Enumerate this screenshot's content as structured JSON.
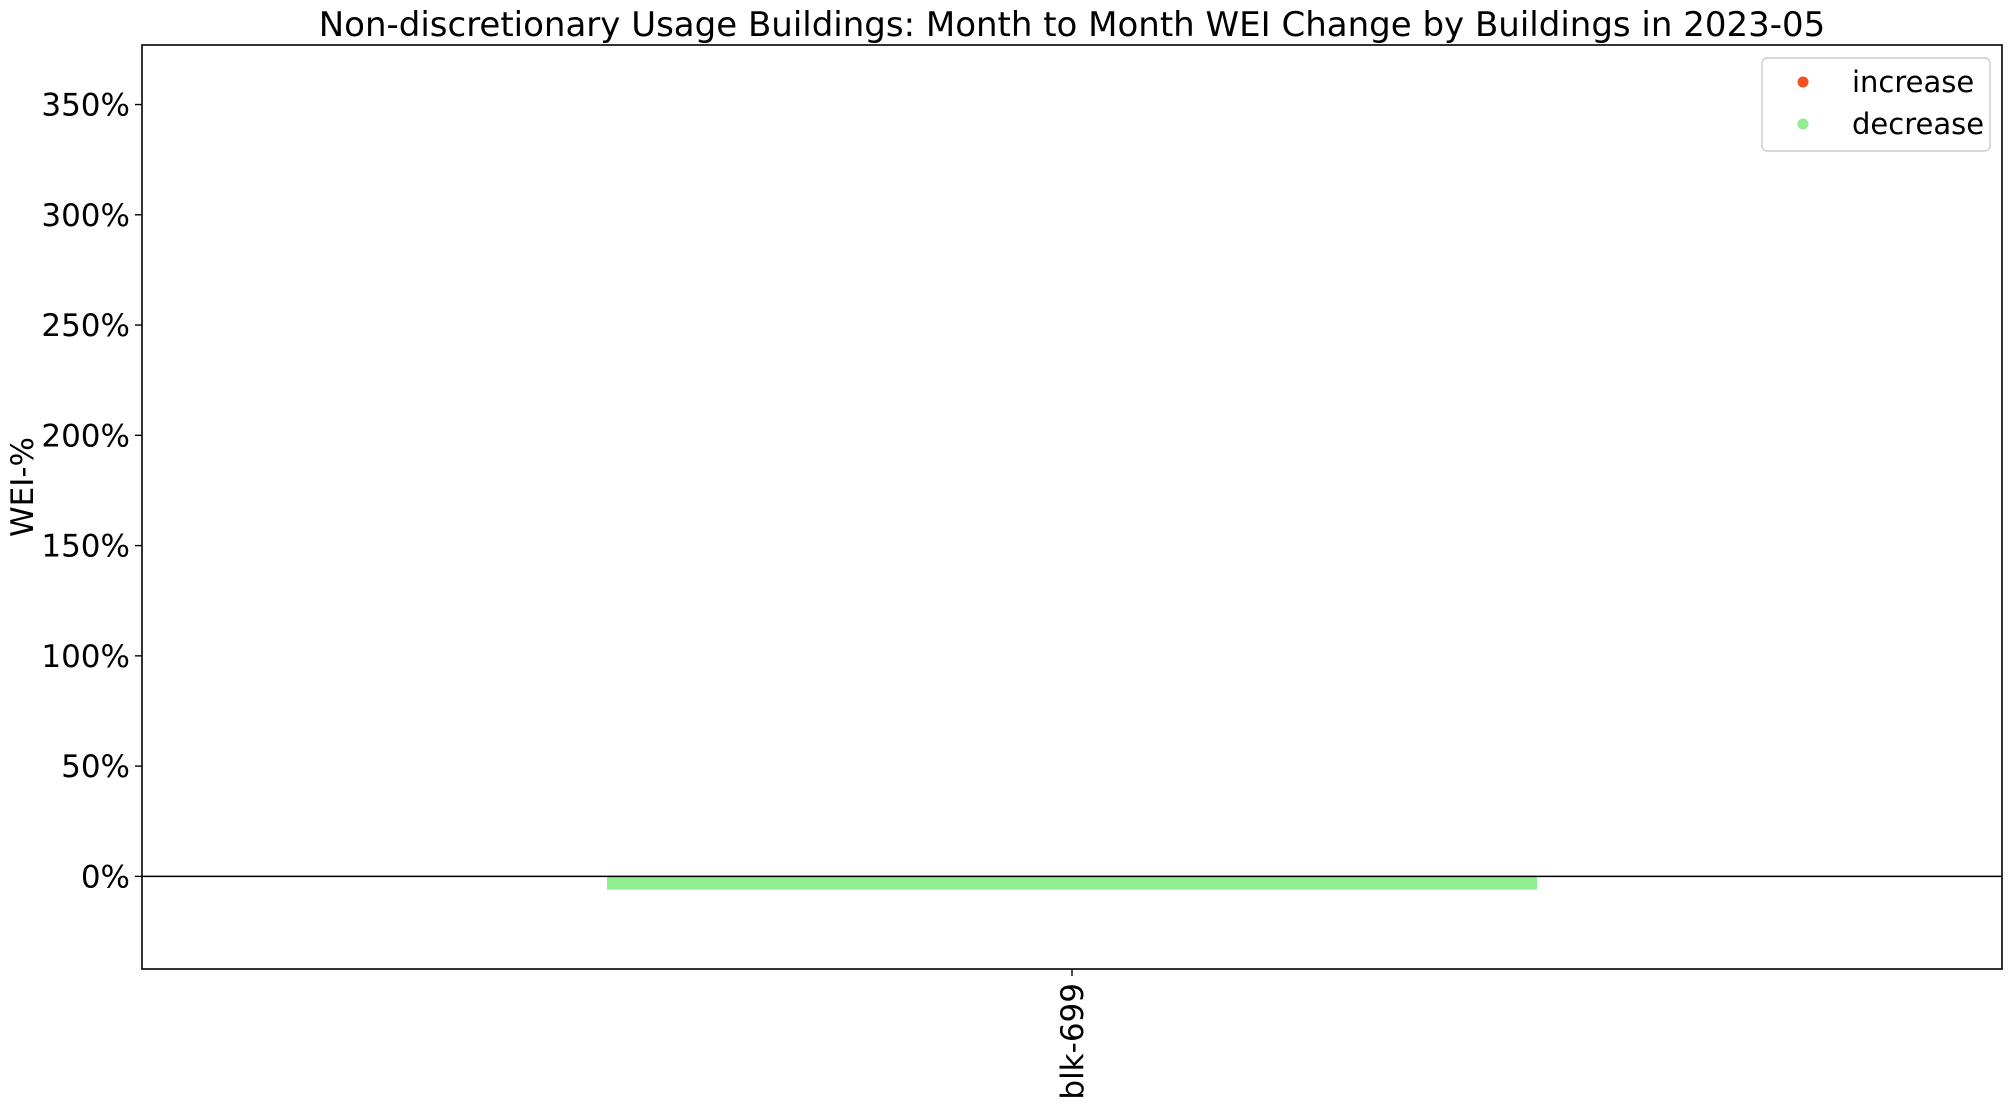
{
  "chart_data": {
    "type": "bar",
    "title": "Non-discretionary Usage Buildings:  Month to Month WEI Change by Buildings in 2023-05",
    "xlabel": "",
    "ylabel": "WEI-%",
    "categories": [
      "blk-699"
    ],
    "values": [
      -6
    ],
    "value_unit": "%",
    "ylim": [
      -42,
      377
    ],
    "yticks": [
      0,
      50,
      100,
      150,
      200,
      250,
      300,
      350
    ],
    "ytick_labels": [
      "0%",
      "50%",
      "100%",
      "150%",
      "200%",
      "250%",
      "300%",
      "350%"
    ],
    "grid": false,
    "zero_line": true,
    "legend": {
      "position": "top-right",
      "entries": [
        {
          "label": "increase",
          "color": "#f4511e"
        },
        {
          "label": "decrease",
          "color": "#90ee90"
        }
      ]
    },
    "colors": {
      "increase": "#f4511e",
      "decrease": "#90ee90"
    }
  }
}
